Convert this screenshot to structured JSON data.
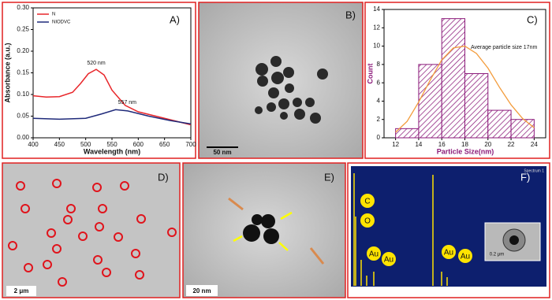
{
  "chart_data": [
    {
      "type": "line",
      "panel_label": "A)",
      "x_label": "Wavelength (nm)",
      "y_label": "Absorbance (a.u.)",
      "xlim": [
        400,
        700
      ],
      "xticks": [
        400,
        450,
        500,
        550,
        600,
        650,
        700
      ],
      "ylim": [
        0,
        0.3
      ],
      "yticks": [
        {
          "value": 0,
          "label": "0.00"
        },
        {
          "value": 0.05,
          "label": "0.05"
        },
        {
          "value": 0.1,
          "label": "0.10"
        },
        {
          "value": 0.15,
          "label": "0.15"
        },
        {
          "value": 0.2,
          "label": "0.20"
        },
        {
          "value": 0.25,
          "label": "0.25"
        },
        {
          "value": 0.3,
          "label": "0.30"
        }
      ],
      "legend": "top-left",
      "series": [
        {
          "name": "N",
          "color": "#e8262a",
          "x": [
            400,
            425,
            450,
            475,
            490,
            505,
            520,
            535,
            550,
            575,
            600,
            650,
            700
          ],
          "values": [
            0.097,
            0.094,
            0.095,
            0.105,
            0.125,
            0.148,
            0.158,
            0.145,
            0.11,
            0.075,
            0.06,
            0.045,
            0.03
          ]
        },
        {
          "name": "NIODVC",
          "color": "#1f2a7a",
          "x": [
            400,
            450,
            500,
            530,
            557,
            580,
            620,
            660,
            700
          ],
          "values": [
            0.045,
            0.043,
            0.045,
            0.055,
            0.065,
            0.062,
            0.05,
            0.04,
            0.032
          ]
        }
      ],
      "annotations": [
        "520 nm",
        "557 nm"
      ]
    },
    {
      "type": "histogram",
      "panel_label": "C)",
      "x_label": "Particle Size(nm)",
      "y_label": "Count",
      "annotation": "Average particle size 17nm",
      "xlim": [
        11,
        25
      ],
      "xticks": [
        12,
        14,
        16,
        18,
        20,
        22,
        24
      ],
      "ylim": [
        0,
        14
      ],
      "yticks": [
        0,
        2,
        4,
        6,
        8,
        10,
        12,
        14
      ],
      "bins": [
        12,
        14,
        16,
        18,
        20,
        22,
        24
      ],
      "counts": [
        1,
        8,
        13,
        7,
        3,
        2
      ],
      "color": "#8b1a7a",
      "fit": {
        "color": "#f39c3c",
        "x": [
          12,
          13,
          14,
          15,
          16,
          17,
          18,
          19,
          20,
          21,
          22,
          23,
          24
        ],
        "values": [
          0.6,
          1.8,
          3.9,
          6.3,
          8.5,
          9.8,
          10.0,
          9.2,
          7.6,
          5.5,
          3.6,
          2.1,
          1.1
        ]
      }
    }
  ],
  "panels": [
    {
      "label": "B)",
      "scale_bar": "50 nm"
    },
    {
      "label": "D)",
      "scale_bar": "2 μm"
    },
    {
      "label": "E)",
      "scale_bar": "20 nm"
    },
    {
      "label": "F)",
      "scale_bar": "0.2 μm",
      "peaks": [
        "C",
        "O",
        "Au",
        "Au",
        "Au",
        "Au"
      ],
      "spectrum": "Spectrum 1"
    }
  ]
}
